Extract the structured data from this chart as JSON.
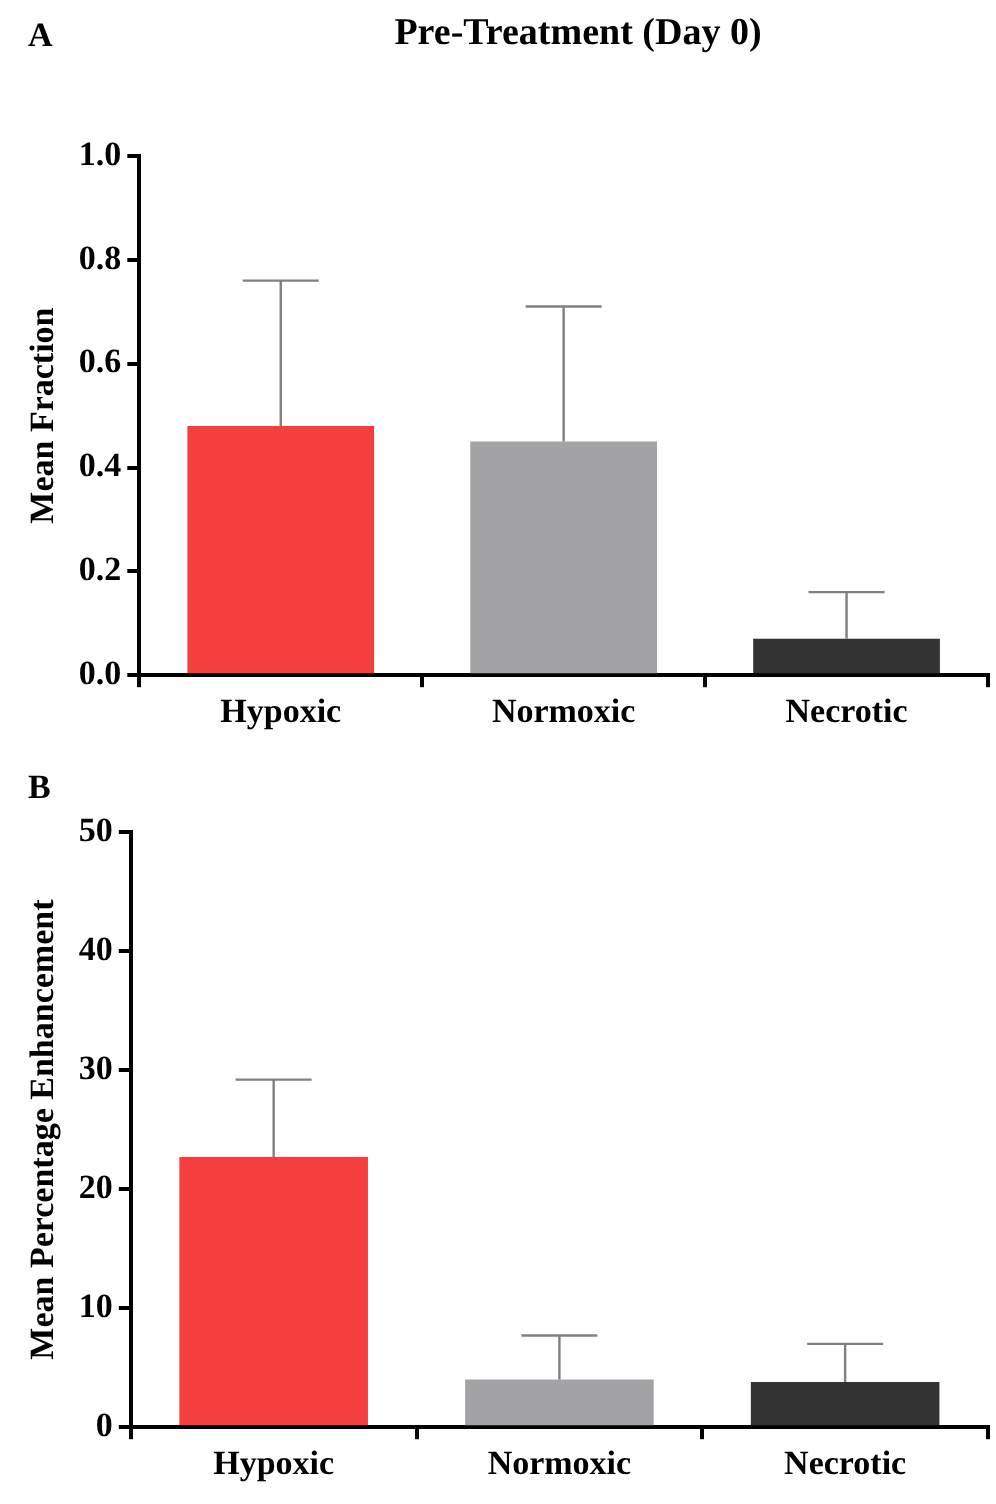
{
  "chart_data": [
    {
      "type": "bar",
      "title": "Pre-Treatment (Day 0)",
      "annotations": [
        "A"
      ],
      "ylabel": "Mean Fraction",
      "categories": [
        "Hypoxic",
        "Normoxic",
        "Necrotic"
      ],
      "values": [
        0.48,
        0.45,
        0.07
      ],
      "colors": [
        "#f53e3e",
        "#a3a3a6",
        "#333333"
      ],
      "errors": [
        [
          0.48,
          0.76
        ],
        [
          0.45,
          0.71
        ],
        [
          0.07,
          0.16
        ]
      ],
      "ylim": [
        0,
        1
      ],
      "yticks": [
        {
          "value": 0,
          "label": "0.0"
        },
        0.2,
        0.4,
        0.6,
        0.8,
        {
          "value": 1,
          "label": "1.0"
        }
      ],
      "grid": false,
      "legend": false
    },
    {
      "type": "bar",
      "annotations": [
        "B"
      ],
      "ylabel": "Mean Percentage Enhancement",
      "categories": [
        "Hypoxic",
        "Normoxic",
        "Necrotic"
      ],
      "values": [
        22.7,
        4.0,
        3.8
      ],
      "colors": [
        "#f53e3e",
        "#a3a3a6",
        "#333333"
      ],
      "errors": [
        [
          22.7,
          29.2
        ],
        [
          4.0,
          7.7
        ],
        [
          3.8,
          7.0
        ]
      ],
      "ylim": [
        0,
        50
      ],
      "yticks": [
        0,
        10,
        20,
        30,
        40,
        50
      ],
      "grid": false,
      "legend": false
    }
  ]
}
